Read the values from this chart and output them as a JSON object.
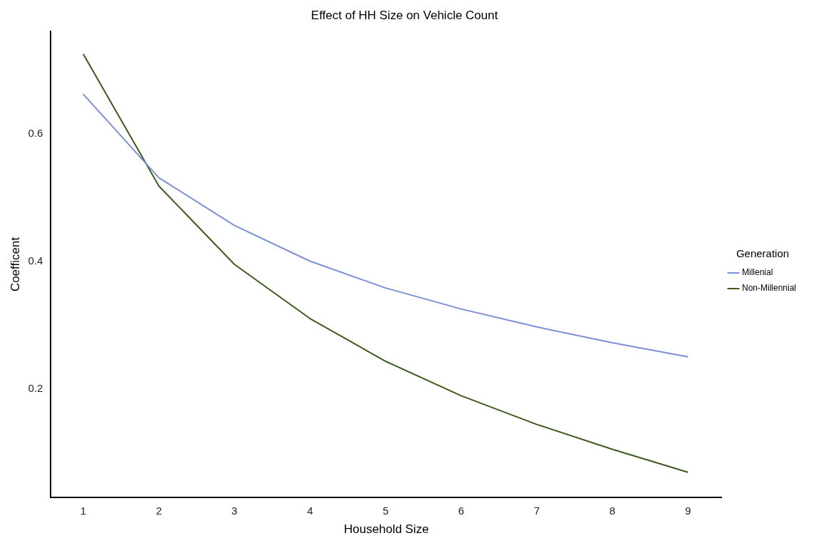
{
  "chart_data": {
    "type": "line",
    "title": "Effect of HH Size on Vehicle Count",
    "xlabel": "Household Size",
    "ylabel": "Coefficent",
    "legend_title": "Generation",
    "x": [
      1,
      2,
      3,
      4,
      5,
      6,
      7,
      8,
      9
    ],
    "series": [
      {
        "name": "Millenial",
        "color": "#7b8fd6",
        "values": [
          0.662,
          0.531,
          0.456,
          0.4,
          0.358,
          0.325,
          0.297,
          0.272,
          0.25
        ]
      },
      {
        "name": "Non-Millennial",
        "color": "#3d5a1e",
        "values": [
          0.725,
          0.518,
          0.395,
          0.31,
          0.243,
          0.189,
          0.144,
          0.105,
          0.069
        ]
      }
    ],
    "xlim": [
      0.57,
      9.45
    ],
    "ylim": [
      0.03,
      0.76
    ],
    "xticks": [
      1,
      2,
      3,
      4,
      5,
      6,
      7,
      8,
      9
    ],
    "yticks": [
      0.2,
      0.4,
      0.6
    ],
    "grid": false,
    "legend": "right",
    "marker": "none",
    "line_style": "solid"
  }
}
